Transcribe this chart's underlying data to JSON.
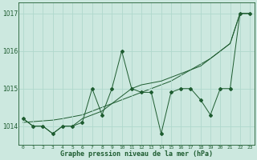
{
  "hours": [
    0,
    1,
    2,
    3,
    4,
    5,
    6,
    7,
    8,
    9,
    10,
    11,
    12,
    13,
    14,
    15,
    16,
    17,
    18,
    19,
    20,
    21,
    22,
    23
  ],
  "series1": [
    1014.2,
    1014.0,
    1014.0,
    1013.8,
    1014.0,
    1014.0,
    1014.1,
    1015.0,
    1014.3,
    1015.0,
    1016.0,
    1015.0,
    1014.9,
    1014.9,
    1013.8,
    1014.9,
    1015.0,
    1015.0,
    1014.7,
    1014.3,
    1015.0,
    1015.0,
    1017.0,
    1017.0
  ],
  "series2": [
    1014.2,
    1014.0,
    1014.0,
    1013.8,
    1014.0,
    1014.0,
    1014.2,
    1014.3,
    1014.4,
    1014.6,
    1014.8,
    1015.0,
    1015.1,
    1015.15,
    1015.2,
    1015.3,
    1015.4,
    1015.5,
    1015.6,
    1015.8,
    1016.0,
    1016.2,
    1017.0,
    1017.0
  ],
  "series3": [
    1014.1,
    1014.12,
    1014.14,
    1014.16,
    1014.2,
    1014.25,
    1014.3,
    1014.4,
    1014.5,
    1014.6,
    1014.7,
    1014.8,
    1014.9,
    1015.0,
    1015.1,
    1015.2,
    1015.35,
    1015.5,
    1015.65,
    1015.8,
    1016.0,
    1016.2,
    1017.0,
    1017.0
  ],
  "bg_color": "#cce8df",
  "line_color": "#1e5c30",
  "grid_color": "#b0d8cc",
  "xlabel": "Graphe pression niveau de la mer (hPa)",
  "ylim": [
    1013.5,
    1017.3
  ],
  "yticks": [
    1014,
    1015,
    1016,
    1017
  ]
}
